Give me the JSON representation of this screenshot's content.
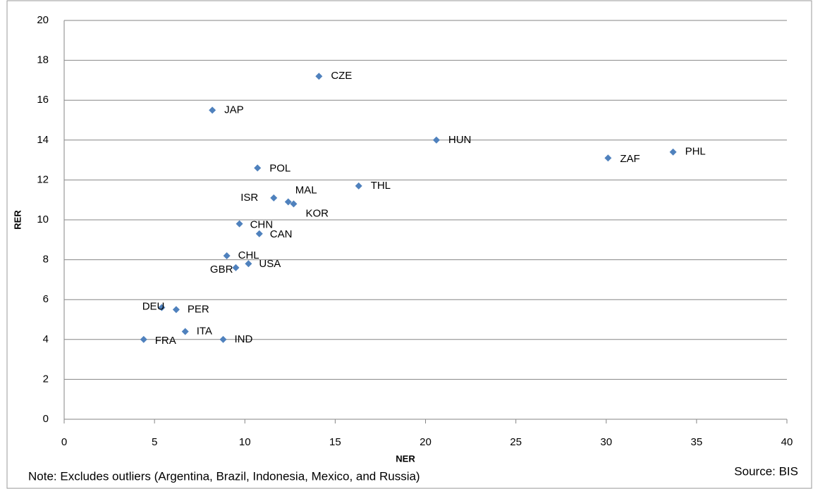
{
  "chart_data": {
    "type": "scatter",
    "x_label": "NER",
    "y_label": "RER",
    "note": "Note: Excludes outliers (Argentina, Brazil, Indonesia, Mexico, and Russia)",
    "source": "Source: BIS",
    "labels": [
      "CZE",
      "JAP",
      "HUN",
      "ZAF",
      "PHL",
      "POL",
      "THL",
      "ISR",
      "MAL",
      "KOR",
      "CHN",
      "CAN",
      "CHL",
      "USA",
      "GBR",
      "DEU",
      "PER",
      "ITA",
      "IND",
      "FRA"
    ],
    "x": [
      14.1,
      8.2,
      20.6,
      30.1,
      33.7,
      10.7,
      16.3,
      11.6,
      12.4,
      12.7,
      9.7,
      10.8,
      9.0,
      10.2,
      9.5,
      5.4,
      6.2,
      6.7,
      8.8,
      4.4
    ],
    "values": [
      17.2,
      15.5,
      14.0,
      13.1,
      13.4,
      12.6,
      11.7,
      11.1,
      10.9,
      10.8,
      9.8,
      9.3,
      8.2,
      7.8,
      7.6,
      5.6,
      5.5,
      4.4,
      4.0,
      4.0
    ],
    "color": "#4f81bd",
    "xlim": [
      0,
      40
    ],
    "xticks": [
      0,
      5,
      10,
      15,
      20,
      25,
      30,
      35,
      40
    ],
    "ylim": [
      0,
      20
    ],
    "yticks": [
      0,
      2,
      4,
      6,
      8,
      10,
      12,
      14,
      16,
      18,
      20
    ],
    "grid": true
  }
}
